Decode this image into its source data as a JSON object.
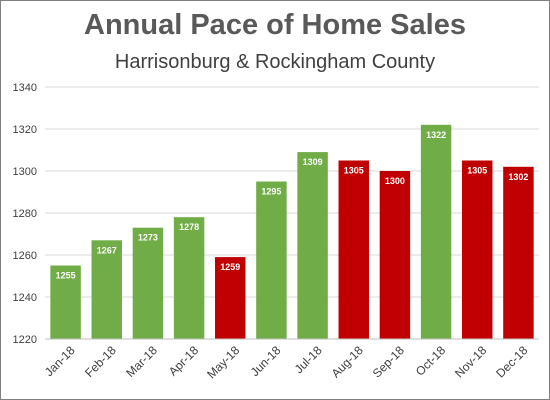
{
  "chart_data": {
    "type": "bar",
    "title": "Annual Pace of Home Sales",
    "subtitle": "Harrisonburg & Rockingham County",
    "categories": [
      "Jan-18",
      "Feb-18",
      "Mar-18",
      "Apr-18",
      "May-18",
      "Jun-18",
      "Jul-18",
      "Aug-18",
      "Sep-18",
      "Oct-18",
      "Nov-18",
      "Dec-18"
    ],
    "values": [
      1255,
      1267,
      1273,
      1278,
      1259,
      1295,
      1309,
      1305,
      1300,
      1322,
      1305,
      1302
    ],
    "bar_colors": [
      "#70ad47",
      "#70ad47",
      "#70ad47",
      "#70ad47",
      "#c00000",
      "#70ad47",
      "#70ad47",
      "#c00000",
      "#c00000",
      "#70ad47",
      "#c00000",
      "#c00000"
    ],
    "ylim": [
      1220,
      1340
    ],
    "yticks": [
      1220,
      1240,
      1260,
      1280,
      1300,
      1320,
      1340
    ],
    "grid": true,
    "legend": "none",
    "xlabel": "",
    "ylabel": ""
  }
}
